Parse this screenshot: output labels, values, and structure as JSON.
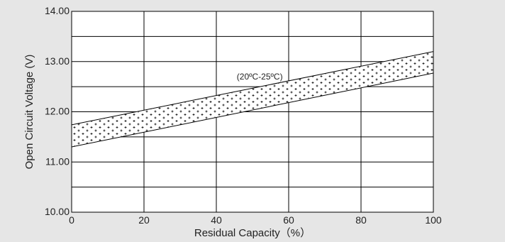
{
  "chart_data": {
    "type": "line",
    "xlabel": "Residual Capacity（%）",
    "ylabel": "Open Circuit Voltage (V)",
    "xlim": [
      0,
      100
    ],
    "ylim": [
      10.0,
      14.0
    ],
    "x_ticks": [
      0,
      20,
      40,
      60,
      80,
      100
    ],
    "x_tick_labels": [
      "0",
      "20",
      "40",
      "60",
      "80",
      "100"
    ],
    "y_ticks": [
      10,
      10.5,
      11,
      11.5,
      12,
      12.5,
      13,
      13.5,
      14
    ],
    "y_tick_labels": [
      "10.00",
      "11.00",
      "12.00",
      "13.00",
      "14.00"
    ],
    "y_labeled_ticks": [
      10,
      11,
      12,
      13,
      14
    ],
    "grid": true,
    "band": {
      "label": "(20ºC-25ºC)",
      "x": [
        0,
        100
      ],
      "upper": [
        11.74,
        13.2
      ],
      "lower": [
        11.3,
        12.77
      ],
      "fill_pattern": "plus-marks"
    },
    "annotation": {
      "text": "(20ºC-25ºC)",
      "x": 52,
      "y": 12.7
    },
    "colors": {
      "background": "#e6e6e6",
      "plot_background": "#ffffff",
      "lines": "#000000"
    }
  }
}
